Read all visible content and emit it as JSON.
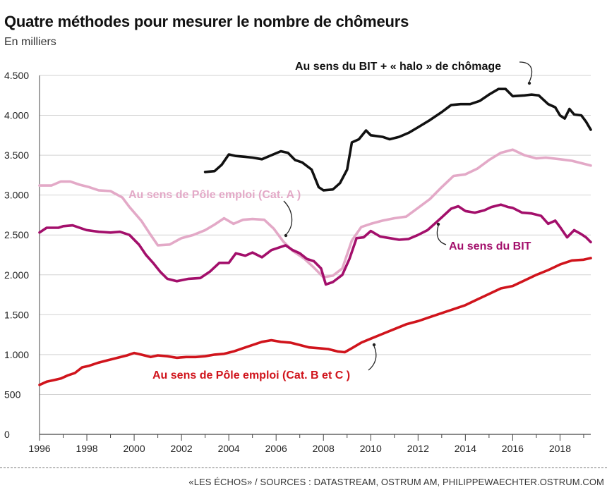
{
  "chart_data": {
    "type": "line",
    "title": "Quatre méthodes pour mesurer le nombre de chômeurs",
    "subtitle": "En milliers",
    "xlim": [
      1996,
      2019.3
    ],
    "ylim": [
      0,
      4500
    ],
    "x_ticks": [
      1996,
      1998,
      2000,
      2002,
      2004,
      2006,
      2008,
      2010,
      2012,
      2014,
      2016,
      2018
    ],
    "y_ticks": [
      0,
      500,
      1000,
      1500,
      2000,
      2500,
      3000,
      3500,
      4000,
      4500
    ],
    "y_tick_labels": [
      "0",
      "500",
      "1.000",
      "1.500",
      "2.000",
      "2.500",
      "3.000",
      "3.500",
      "4.000",
      "4.500"
    ],
    "grid": "horizontal",
    "series": [
      {
        "name": "Au sens du BIT + « halo » de chômage",
        "color": "#111111",
        "points": [
          [
            2003.0,
            3290
          ],
          [
            2003.4,
            3300
          ],
          [
            2003.7,
            3380
          ],
          [
            2004.0,
            3510
          ],
          [
            2004.3,
            3490
          ],
          [
            2004.7,
            3480
          ],
          [
            2005.0,
            3470
          ],
          [
            2005.4,
            3450
          ],
          [
            2005.8,
            3500
          ],
          [
            2006.2,
            3550
          ],
          [
            2006.5,
            3530
          ],
          [
            2006.8,
            3440
          ],
          [
            2007.1,
            3410
          ],
          [
            2007.5,
            3320
          ],
          [
            2007.8,
            3100
          ],
          [
            2008.0,
            3060
          ],
          [
            2008.4,
            3070
          ],
          [
            2008.7,
            3150
          ],
          [
            2009.0,
            3320
          ],
          [
            2009.2,
            3660
          ],
          [
            2009.5,
            3700
          ],
          [
            2009.8,
            3810
          ],
          [
            2010.0,
            3750
          ],
          [
            2010.5,
            3730
          ],
          [
            2010.8,
            3700
          ],
          [
            2011.2,
            3730
          ],
          [
            2011.6,
            3780
          ],
          [
            2012.0,
            3850
          ],
          [
            2012.5,
            3940
          ],
          [
            2013.0,
            4040
          ],
          [
            2013.4,
            4130
          ],
          [
            2013.8,
            4140
          ],
          [
            2014.2,
            4140
          ],
          [
            2014.6,
            4180
          ],
          [
            2015.0,
            4260
          ],
          [
            2015.4,
            4330
          ],
          [
            2015.7,
            4330
          ],
          [
            2016.0,
            4240
          ],
          [
            2016.5,
            4250
          ],
          [
            2016.8,
            4260
          ],
          [
            2017.1,
            4250
          ],
          [
            2017.5,
            4140
          ],
          [
            2017.8,
            4100
          ],
          [
            2018.0,
            4000
          ],
          [
            2018.2,
            3960
          ],
          [
            2018.4,
            4080
          ],
          [
            2018.6,
            4010
          ],
          [
            2018.9,
            4000
          ],
          [
            2019.1,
            3920
          ],
          [
            2019.3,
            3820
          ]
        ]
      },
      {
        "name": "Au sens de Pôle emploi (Cat. A )",
        "color": "#e3a9c7",
        "points": [
          [
            1996.0,
            3120
          ],
          [
            1996.5,
            3120
          ],
          [
            1996.9,
            3170
          ],
          [
            1997.3,
            3170
          ],
          [
            1997.7,
            3130
          ],
          [
            1998.1,
            3100
          ],
          [
            1998.5,
            3060
          ],
          [
            1999.0,
            3050
          ],
          [
            1999.5,
            2970
          ],
          [
            1999.8,
            2850
          ],
          [
            2000.3,
            2680
          ],
          [
            2000.7,
            2500
          ],
          [
            2001.0,
            2370
          ],
          [
            2001.5,
            2380
          ],
          [
            2002.0,
            2460
          ],
          [
            2002.5,
            2500
          ],
          [
            2003.0,
            2560
          ],
          [
            2003.4,
            2630
          ],
          [
            2003.8,
            2710
          ],
          [
            2004.2,
            2640
          ],
          [
            2004.6,
            2690
          ],
          [
            2005.0,
            2700
          ],
          [
            2005.5,
            2690
          ],
          [
            2005.9,
            2580
          ],
          [
            2006.3,
            2420
          ],
          [
            2006.7,
            2300
          ],
          [
            2007.2,
            2200
          ],
          [
            2007.6,
            2090
          ],
          [
            2008.0,
            1970
          ],
          [
            2008.4,
            1990
          ],
          [
            2008.8,
            2080
          ],
          [
            2009.2,
            2430
          ],
          [
            2009.6,
            2600
          ],
          [
            2010.0,
            2640
          ],
          [
            2010.5,
            2680
          ],
          [
            2011.0,
            2710
          ],
          [
            2011.5,
            2730
          ],
          [
            2012.0,
            2840
          ],
          [
            2012.5,
            2950
          ],
          [
            2013.0,
            3100
          ],
          [
            2013.5,
            3240
          ],
          [
            2014.0,
            3260
          ],
          [
            2014.5,
            3330
          ],
          [
            2015.0,
            3440
          ],
          [
            2015.5,
            3530
          ],
          [
            2016.0,
            3570
          ],
          [
            2016.5,
            3500
          ],
          [
            2017.0,
            3460
          ],
          [
            2017.4,
            3470
          ],
          [
            2018.0,
            3450
          ],
          [
            2018.5,
            3430
          ],
          [
            2019.3,
            3370
          ]
        ]
      },
      {
        "name": "Au sens du BIT",
        "color": "#a30f6b",
        "points": [
          [
            1996.0,
            2530
          ],
          [
            1996.3,
            2590
          ],
          [
            1996.8,
            2590
          ],
          [
            1997.0,
            2610
          ],
          [
            1997.4,
            2620
          ],
          [
            1997.8,
            2580
          ],
          [
            1998.0,
            2560
          ],
          [
            1998.5,
            2540
          ],
          [
            1999.0,
            2530
          ],
          [
            1999.4,
            2540
          ],
          [
            1999.8,
            2500
          ],
          [
            2000.2,
            2380
          ],
          [
            2000.5,
            2250
          ],
          [
            2000.8,
            2150
          ],
          [
            2001.1,
            2040
          ],
          [
            2001.4,
            1950
          ],
          [
            2001.8,
            1920
          ],
          [
            2002.3,
            1950
          ],
          [
            2002.8,
            1960
          ],
          [
            2003.2,
            2040
          ],
          [
            2003.6,
            2150
          ],
          [
            2004.0,
            2150
          ],
          [
            2004.3,
            2270
          ],
          [
            2004.7,
            2240
          ],
          [
            2005.0,
            2280
          ],
          [
            2005.4,
            2220
          ],
          [
            2005.8,
            2310
          ],
          [
            2006.2,
            2350
          ],
          [
            2006.4,
            2370
          ],
          [
            2006.7,
            2310
          ],
          [
            2007.0,
            2270
          ],
          [
            2007.3,
            2200
          ],
          [
            2007.6,
            2170
          ],
          [
            2007.9,
            2080
          ],
          [
            2008.1,
            1880
          ],
          [
            2008.4,
            1910
          ],
          [
            2008.8,
            2000
          ],
          [
            2009.1,
            2200
          ],
          [
            2009.4,
            2460
          ],
          [
            2009.7,
            2470
          ],
          [
            2010.0,
            2550
          ],
          [
            2010.4,
            2480
          ],
          [
            2010.8,
            2460
          ],
          [
            2011.2,
            2440
          ],
          [
            2011.6,
            2450
          ],
          [
            2012.0,
            2500
          ],
          [
            2012.4,
            2560
          ],
          [
            2012.7,
            2640
          ],
          [
            2013.0,
            2720
          ],
          [
            2013.4,
            2830
          ],
          [
            2013.7,
            2860
          ],
          [
            2014.0,
            2800
          ],
          [
            2014.4,
            2780
          ],
          [
            2014.8,
            2810
          ],
          [
            2015.1,
            2850
          ],
          [
            2015.5,
            2880
          ],
          [
            2015.8,
            2850
          ],
          [
            2016.0,
            2840
          ],
          [
            2016.4,
            2780
          ],
          [
            2016.8,
            2770
          ],
          [
            2017.2,
            2740
          ],
          [
            2017.5,
            2640
          ],
          [
            2017.8,
            2680
          ],
          [
            2018.0,
            2600
          ],
          [
            2018.3,
            2470
          ],
          [
            2018.6,
            2560
          ],
          [
            2018.9,
            2510
          ],
          [
            2019.1,
            2470
          ],
          [
            2019.3,
            2410
          ]
        ]
      },
      {
        "name": "Au sens de Pôle emploi (Cat. B et C )",
        "color": "#d0141c",
        "points": [
          [
            1996.0,
            620
          ],
          [
            1996.3,
            660
          ],
          [
            1996.6,
            680
          ],
          [
            1996.9,
            700
          ],
          [
            1997.2,
            740
          ],
          [
            1997.5,
            770
          ],
          [
            1997.8,
            840
          ],
          [
            1998.1,
            860
          ],
          [
            1998.5,
            900
          ],
          [
            1998.9,
            930
          ],
          [
            1999.3,
            960
          ],
          [
            1999.7,
            990
          ],
          [
            2000.0,
            1020
          ],
          [
            2000.3,
            1000
          ],
          [
            2000.7,
            970
          ],
          [
            2001.0,
            990
          ],
          [
            2001.4,
            980
          ],
          [
            2001.8,
            960
          ],
          [
            2002.2,
            970
          ],
          [
            2002.6,
            970
          ],
          [
            2003.0,
            980
          ],
          [
            2003.4,
            1000
          ],
          [
            2003.8,
            1010
          ],
          [
            2004.2,
            1040
          ],
          [
            2004.6,
            1080
          ],
          [
            2005.0,
            1120
          ],
          [
            2005.4,
            1160
          ],
          [
            2005.8,
            1180
          ],
          [
            2006.2,
            1160
          ],
          [
            2006.6,
            1150
          ],
          [
            2007.0,
            1120
          ],
          [
            2007.4,
            1090
          ],
          [
            2007.8,
            1080
          ],
          [
            2008.2,
            1070
          ],
          [
            2008.6,
            1040
          ],
          [
            2008.9,
            1030
          ],
          [
            2009.2,
            1080
          ],
          [
            2009.6,
            1150
          ],
          [
            2010.0,
            1200
          ],
          [
            2010.5,
            1260
          ],
          [
            2011.0,
            1320
          ],
          [
            2011.5,
            1380
          ],
          [
            2012.0,
            1420
          ],
          [
            2012.5,
            1470
          ],
          [
            2013.0,
            1520
          ],
          [
            2013.5,
            1570
          ],
          [
            2014.0,
            1620
          ],
          [
            2014.5,
            1690
          ],
          [
            2015.0,
            1760
          ],
          [
            2015.5,
            1830
          ],
          [
            2016.0,
            1860
          ],
          [
            2016.5,
            1930
          ],
          [
            2017.0,
            2000
          ],
          [
            2017.5,
            2060
          ],
          [
            2018.0,
            2130
          ],
          [
            2018.5,
            2180
          ],
          [
            2019.0,
            2190
          ],
          [
            2019.3,
            2210
          ]
        ]
      }
    ],
    "annotations": [
      {
        "series": 0,
        "text": "Au sens du BIT + « halo » de chômage",
        "color": "#111111"
      },
      {
        "series": 1,
        "text": "Au sens de Pôle emploi (Cat. A )",
        "color": "#e3a9c7"
      },
      {
        "series": 2,
        "text": "Au sens du BIT",
        "color": "#a30f6b"
      },
      {
        "series": 3,
        "text": "Au sens de Pôle emploi (Cat. B et C )",
        "color": "#d0141c"
      }
    ]
  },
  "source": "«LES ÉCHOS» / SOURCES : DATASTREAM, OSTRUM AM, PHILIPPEWAECHTER.OSTRUM.COM"
}
